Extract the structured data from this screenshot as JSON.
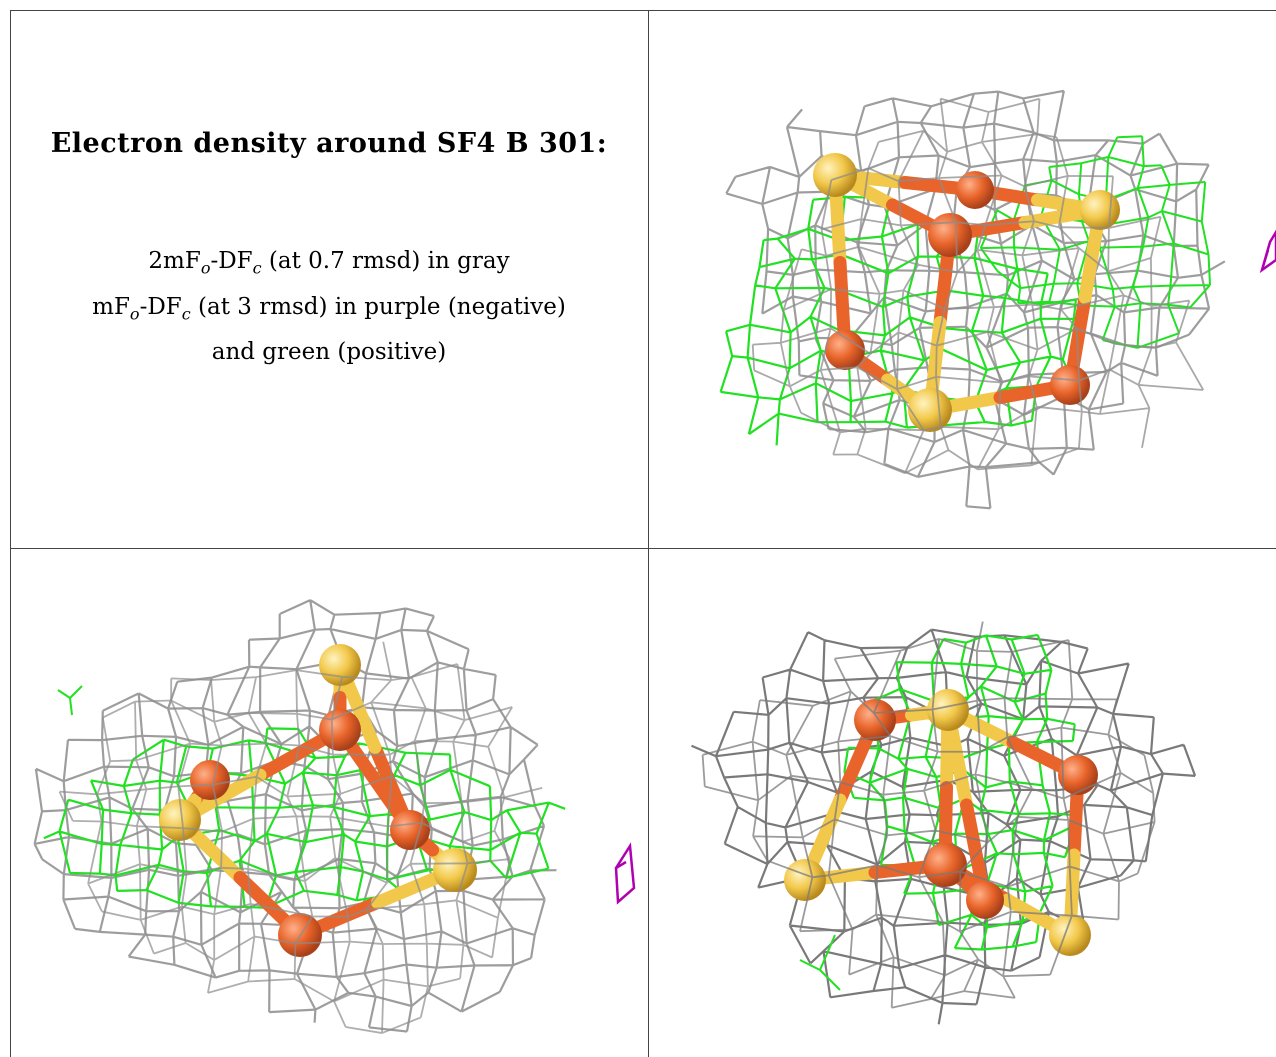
{
  "caption": {
    "title": "Electron density around SF4 B 301:",
    "line1": {
      "pre": "2mF",
      "sub1": "o",
      "mid": "-DF",
      "sub2": "c",
      "post": " (at 0.7 rmsd) in gray"
    },
    "line2": {
      "pre": "mF",
      "sub1": "o",
      "mid": "-DF",
      "sub2": "c",
      "post": " (at 3 rmsd) in purple (negative)"
    },
    "line3": "and green (positive)"
  },
  "colors": {
    "map_2fofc": "#8c8c8c",
    "map_fofc_positive": "#22e022",
    "map_fofc_negative": "#b000b0",
    "iron": "#e8642a",
    "sulfur": "#f2c84a",
    "grid_lines": "#444444"
  },
  "views": [
    {
      "name": "view-top-right"
    },
    {
      "name": "view-bottom-left"
    },
    {
      "name": "view-bottom-right"
    }
  ]
}
